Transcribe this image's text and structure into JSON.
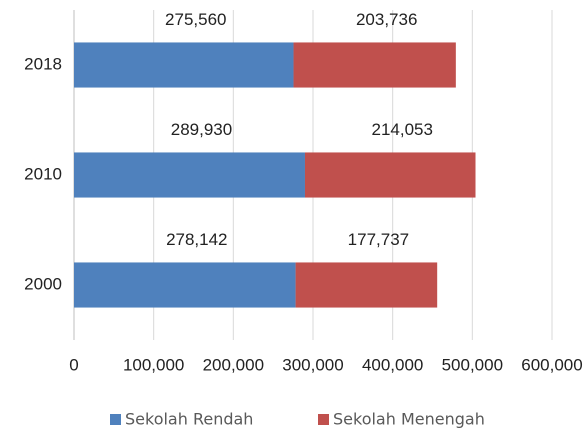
{
  "chart_data": {
    "type": "stacked-barh",
    "categories": [
      "2000",
      "2010",
      "2018"
    ],
    "series": [
      {
        "name": "Sekolah Rendah",
        "color": "#4f81bd",
        "values": [
          278142,
          289930,
          275560
        ],
        "value_labels": [
          "278,142",
          "289,930",
          "275,560"
        ]
      },
      {
        "name": "Sekolah Menengah",
        "color": "#c0504d",
        "values": [
          177737,
          214053,
          203736
        ],
        "value_labels": [
          "177,737",
          "214,053",
          "203,736"
        ]
      }
    ],
    "xlim": [
      0,
      600000
    ],
    "xticks": [
      0,
      {
        "value": 100000,
        "label": "100,000"
      },
      {
        "value": 200000,
        "label": "200,000"
      },
      {
        "value": 300000,
        "label": "300,000"
      },
      {
        "value": 400000,
        "label": "400,000"
      },
      {
        "value": 500000,
        "label": "500,000"
      },
      {
        "value": 600000,
        "label": "600,000"
      }
    ],
    "grid": true,
    "legend": "bottom"
  }
}
